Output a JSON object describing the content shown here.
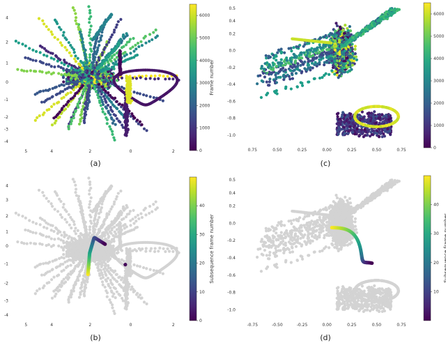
{
  "chart_data": [
    {
      "type": "scatter",
      "panel": "a",
      "caption": "(a)",
      "xlim": [
        5.5,
        -2.2
      ],
      "ylim": [
        -3.6,
        4.4
      ],
      "xticks": [
        "5",
        "4",
        "2",
        "0",
        "2"
      ],
      "xtick_values": [
        5,
        3.8,
        2,
        0.1,
        -1.9
      ],
      "yticks": [
        "4",
        "2",
        "1",
        "0",
        "-1",
        "-2",
        "-3",
        "-4"
      ],
      "ytick_values": [
        3.7,
        2.3,
        1.1,
        0,
        -1,
        -2,
        -2.7,
        -3.4
      ],
      "grid": false,
      "colorbar": {
        "label": "Frame number",
        "range": [
          0,
          6500
        ],
        "ticks": [
          "0",
          "1000",
          "2000",
          "3000",
          "4000",
          "5000",
          "6000"
        ],
        "tick_values": [
          0,
          1000,
          2000,
          3000,
          4000,
          5000,
          6000
        ],
        "colormap": "viridis"
      }
    },
    {
      "type": "scatter",
      "panel": "b",
      "caption": "(b)",
      "xlim": [
        5.5,
        -2.2
      ],
      "ylim": [
        -3.6,
        4.4
      ],
      "xticks": [
        "5",
        "4",
        "2",
        "0",
        "2"
      ],
      "xtick_values": [
        5,
        3.8,
        2,
        0.1,
        -1.9
      ],
      "yticks": [
        "4",
        "3",
        "2",
        "1",
        "0",
        "-1",
        "-2",
        "-3",
        "-4"
      ],
      "ytick_values": [
        3.9,
        3.1,
        2.2,
        1.3,
        0.5,
        -0.5,
        -1.6,
        -2.6,
        -3.4
      ],
      "grid": false,
      "background_color": "#d3d3d3",
      "colorbar": {
        "label": "Subsequence frame number",
        "range": [
          0,
          50
        ],
        "ticks": [
          "0",
          "10",
          "20",
          "30",
          "40"
        ],
        "tick_values": [
          0,
          10,
          20,
          30,
          40
        ],
        "colormap": "viridis"
      }
    },
    {
      "type": "scatter",
      "panel": "c",
      "caption": "(c)",
      "xlim": [
        -0.85,
        0.82
      ],
      "ylim": [
        -1.1,
        0.55
      ],
      "xticks": [
        "0.75",
        "0.50",
        "0.25",
        "0.00",
        "0.25",
        "0.50",
        "0.75"
      ],
      "xtick_values": [
        -0.75,
        -0.5,
        -0.25,
        0,
        0.25,
        0.5,
        0.75
      ],
      "yticks": [
        "0.5",
        "0.4",
        "0.2",
        "0.0",
        "-0.2",
        "-0.4",
        "-0.6",
        "-0.8",
        "-1.0"
      ],
      "ytick_values": [
        0.5,
        0.35,
        0.2,
        0,
        -0.2,
        -0.4,
        -0.6,
        -0.8,
        -1.0
      ],
      "grid": false,
      "colorbar": {
        "label": "",
        "range": [
          0,
          6500
        ],
        "ticks": [
          "0",
          "1000",
          "2000",
          "3000",
          "4000",
          "5000",
          "6000"
        ],
        "tick_values": [
          0,
          1000,
          2000,
          3000,
          4000,
          5000,
          6000
        ],
        "colormap": "viridis"
      }
    },
    {
      "type": "scatter",
      "panel": "d",
      "caption": "(d)",
      "xlim": [
        -0.85,
        0.82
      ],
      "ylim": [
        -1.1,
        0.55
      ],
      "xticks": [
        "-0.75",
        "-0.50",
        "-0.25",
        "0.00",
        "0.25",
        "0.50",
        "0.75"
      ],
      "xtick_values": [
        -0.75,
        -0.5,
        -0.25,
        0,
        0.25,
        0.5,
        0.75
      ],
      "yticks": [
        "0.5",
        "0.4",
        "0.2",
        "0.0",
        "-0.2",
        "-0.4",
        "-0.6",
        "-0.8",
        "-1.0"
      ],
      "ytick_values": [
        0.5,
        0.35,
        0.2,
        0,
        -0.2,
        -0.4,
        -0.6,
        -0.8,
        -1.0
      ],
      "grid": false,
      "background_color": "#d3d3d3",
      "colorbar": {
        "label": "Subsequence frame number",
        "range": [
          0,
          50
        ],
        "ticks": [
          "10",
          "20",
          "30",
          "40"
        ],
        "tick_values": [
          10,
          20,
          30,
          40
        ],
        "colormap": "viridis"
      }
    }
  ]
}
